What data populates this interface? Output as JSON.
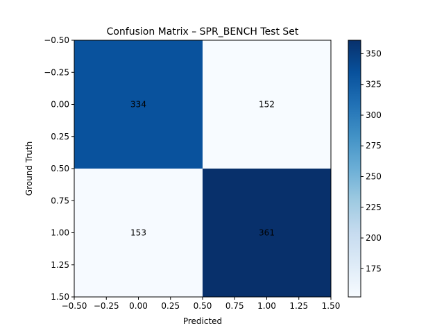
{
  "chart_data": {
    "type": "heatmap",
    "title": "Confusion Matrix – SPR_BENCH Test Set",
    "xlabel": "Predicted",
    "ylabel": "Ground Truth",
    "matrix": [
      [
        334,
        152
      ],
      [
        153,
        361
      ]
    ],
    "cell_labels": [
      [
        "334",
        "152"
      ],
      [
        "153",
        "361"
      ]
    ],
    "xlim": [
      -0.5,
      1.5
    ],
    "ylim": [
      -0.5,
      1.5
    ],
    "y_inverted": true,
    "x_ticks": [
      -0.5,
      -0.25,
      0.0,
      0.25,
      0.5,
      0.75,
      1.0,
      1.25,
      1.5
    ],
    "x_tick_labels": [
      "−0.50",
      "−0.25",
      "0.00",
      "0.25",
      "0.50",
      "0.75",
      "1.00",
      "1.25",
      "1.50"
    ],
    "y_ticks": [
      -0.5,
      -0.25,
      0.0,
      0.25,
      0.5,
      0.75,
      1.0,
      1.25,
      1.5
    ],
    "y_tick_labels": [
      "−0.50",
      "−0.25",
      "0.00",
      "0.25",
      "0.50",
      "0.75",
      "1.00",
      "1.25",
      "1.50"
    ],
    "colormap": "Blues",
    "colorbar": {
      "range": [
        152,
        361
      ],
      "ticks": [
        175,
        200,
        225,
        250,
        275,
        300,
        325,
        350
      ],
      "tick_labels": [
        "175",
        "200",
        "225",
        "250",
        "275",
        "300",
        "325",
        "350"
      ]
    },
    "colors": {
      "low": "#f7fbff",
      "high": "#08306b"
    }
  }
}
